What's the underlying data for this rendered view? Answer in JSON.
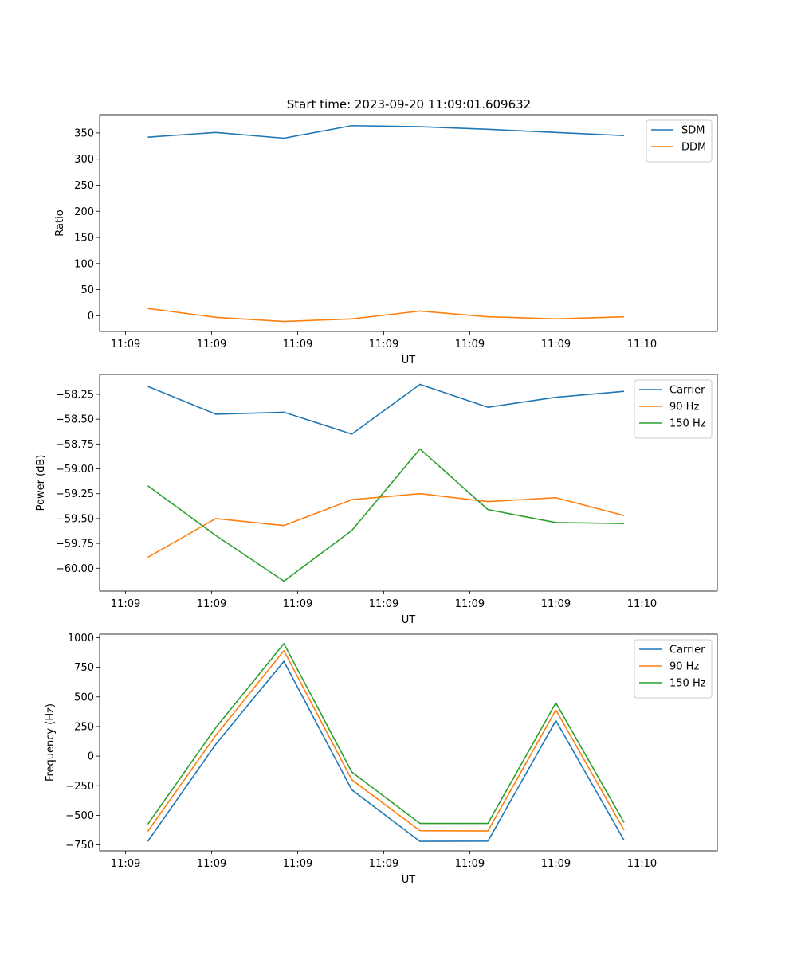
{
  "figure": {
    "title": "Start time: 2023-09-20 11:09:01.609632"
  },
  "chart_data": [
    {
      "type": "line",
      "title": "Start time: 2023-09-20 11:09:01.609632",
      "xlabel": "UT",
      "ylabel": "Ratio",
      "x_ticks": [
        "11:09",
        "11:09",
        "11:09",
        "11:09",
        "11:09",
        "11:09",
        "11:10"
      ],
      "xlim": [
        0,
        3000
      ],
      "x": [
        234,
        564,
        895,
        1225,
        1556,
        1886,
        2216,
        2547
      ],
      "ylim": [
        -30,
        385
      ],
      "y_ticks": [
        0,
        50,
        100,
        150,
        200,
        250,
        300,
        350
      ],
      "y_tick_labels": [
        "0",
        "50",
        "100",
        "150",
        "200",
        "250",
        "300",
        "350"
      ],
      "legend_position": "top-right",
      "series": [
        {
          "name": "SDM",
          "color": "#1f77b4",
          "values": [
            342,
            351,
            340,
            364,
            362,
            357,
            351,
            345
          ]
        },
        {
          "name": "DDM",
          "color": "#ff7f0e",
          "values": [
            14,
            -3,
            -11,
            -6,
            9,
            -2,
            -6,
            -2
          ]
        }
      ]
    },
    {
      "type": "line",
      "xlabel": "UT",
      "ylabel": "Power (dB)",
      "x_ticks": [
        "11:09",
        "11:09",
        "11:09",
        "11:09",
        "11:09",
        "11:09",
        "11:10"
      ],
      "xlim": [
        0,
        3000
      ],
      "x": [
        234,
        564,
        895,
        1225,
        1556,
        1886,
        2216,
        2547
      ],
      "ylim": [
        -60.23,
        -58.05
      ],
      "y_ticks": [
        -60.0,
        -59.75,
        -59.5,
        -59.25,
        -59.0,
        -58.75,
        -58.5,
        -58.25
      ],
      "y_tick_labels": [
        "−60.00",
        "−59.75",
        "−59.50",
        "−59.25",
        "−59.00",
        "−58.75",
        "−58.50",
        "−58.25"
      ],
      "legend_position": "top-right",
      "series": [
        {
          "name": "Carrier",
          "color": "#1f77b4",
          "values": [
            -58.17,
            -58.45,
            -58.43,
            -58.65,
            -58.15,
            -58.38,
            -58.28,
            -58.22
          ]
        },
        {
          "name": "90 Hz",
          "color": "#ff7f0e",
          "values": [
            -59.89,
            -59.5,
            -59.57,
            -59.31,
            -59.25,
            -59.33,
            -59.29,
            -59.47
          ]
        },
        {
          "name": "150 Hz",
          "color": "#2ca02c",
          "values": [
            -59.17,
            -59.67,
            -60.13,
            -59.62,
            -58.8,
            -59.41,
            -59.54,
            -59.55
          ]
        }
      ]
    },
    {
      "type": "line",
      "xlabel": "UT",
      "ylabel": "Frequency (Hz)",
      "x_ticks": [
        "11:09",
        "11:09",
        "11:09",
        "11:09",
        "11:09",
        "11:09",
        "11:10"
      ],
      "xlim": [
        0,
        3000
      ],
      "x": [
        234,
        564,
        895,
        1225,
        1556,
        1886,
        2216,
        2547
      ],
      "ylim": [
        -800,
        1030
      ],
      "y_ticks": [
        -750,
        -500,
        -250,
        0,
        250,
        500,
        750,
        1000
      ],
      "y_tick_labels": [
        "−750",
        "−500",
        "−250",
        "0",
        "250",
        "500",
        "750",
        "1000"
      ],
      "legend_position": "top-right",
      "series": [
        {
          "name": "Carrier",
          "color": "#1f77b4",
          "values": [
            -720,
            100,
            800,
            -285,
            -720,
            -718,
            300,
            -710
          ]
        },
        {
          "name": "90 Hz",
          "color": "#ff7f0e",
          "values": [
            -635,
            175,
            890,
            -200,
            -630,
            -632,
            390,
            -625
          ]
        },
        {
          "name": "150 Hz",
          "color": "#2ca02c",
          "values": [
            -575,
            240,
            950,
            -135,
            -568,
            -568,
            450,
            -560
          ]
        }
      ]
    }
  ]
}
